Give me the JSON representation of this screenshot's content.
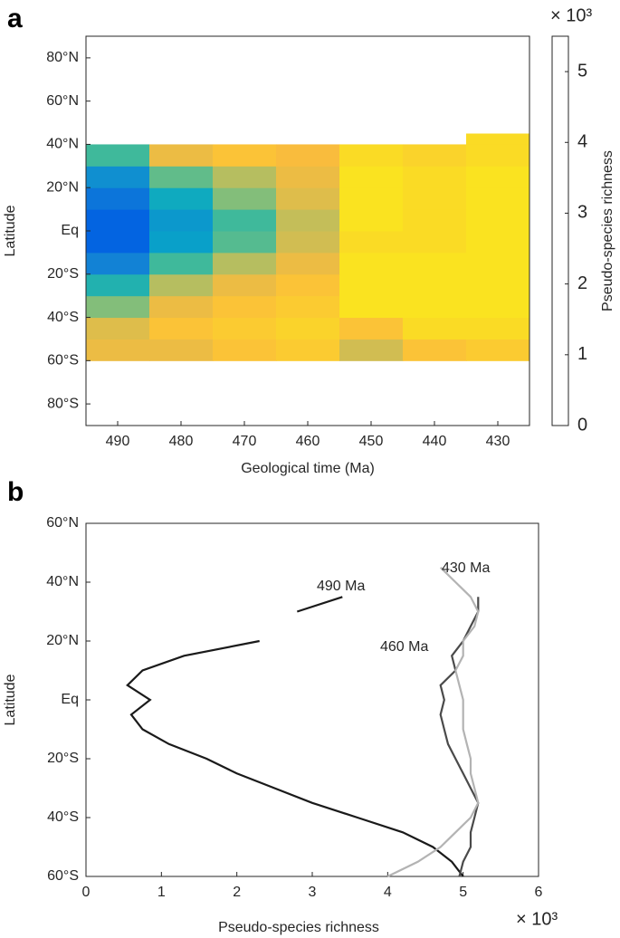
{
  "chart_data": [
    {
      "type": "heatmap",
      "panel": "a",
      "x_label": "Geological time (Ma)",
      "y_label": "Latitude",
      "colorbar_label": "Pseudo-species richness",
      "colorbar_exponent": "× 10³",
      "x_bins": [
        495,
        485,
        475,
        465,
        455,
        445,
        435,
        425
      ],
      "y_bins": [
        -60,
        -50,
        -40,
        -30,
        -20,
        -10,
        0,
        10,
        20,
        30,
        40,
        45
      ],
      "values": [
        [
          4.6,
          4.6,
          4.8,
          4.9,
          4.4,
          4.8,
          4.9
        ],
        [
          4.5,
          4.8,
          4.9,
          5.0,
          4.8,
          5.1,
          5.1
        ],
        [
          3.8,
          4.6,
          4.8,
          4.9,
          5.2,
          5.2,
          5.2
        ],
        [
          2.8,
          4.2,
          4.6,
          4.8,
          5.2,
          5.2,
          5.2
        ],
        [
          1.5,
          3.2,
          4.2,
          4.6,
          5.2,
          5.2,
          5.2
        ],
        [
          0.8,
          2.2,
          3.4,
          4.4,
          5.1,
          5.1,
          5.2
        ],
        [
          0.8,
          2.0,
          3.2,
          4.3,
          5.2,
          5.1,
          5.2
        ],
        [
          1.2,
          2.5,
          3.8,
          4.5,
          5.2,
          5.1,
          5.2
        ],
        [
          1.8,
          3.5,
          4.2,
          4.6,
          5.2,
          5.1,
          5.2
        ],
        [
          3.2,
          4.6,
          4.8,
          4.7,
          5.1,
          5.0,
          5.1
        ],
        [
          null,
          null,
          null,
          null,
          null,
          null,
          5.1
        ]
      ],
      "xlim": [
        495,
        425
      ],
      "xticks": [
        490,
        480,
        470,
        460,
        450,
        440,
        430
      ],
      "ylim": [
        -90,
        90
      ],
      "yticks": [
        {
          "value": -80,
          "label": "80°S"
        },
        {
          "value": -60,
          "label": "60°S"
        },
        {
          "value": -40,
          "label": "40°S"
        },
        {
          "value": -20,
          "label": "20°S"
        },
        {
          "value": 0,
          "label": "Eq"
        },
        {
          "value": 20,
          "label": "20°N"
        },
        {
          "value": 40,
          "label": "40°N"
        },
        {
          "value": 60,
          "label": "60°N"
        },
        {
          "value": 80,
          "label": "80°N"
        }
      ],
      "clim": [
        0,
        5.5
      ],
      "cticks": [
        0,
        1,
        2,
        3,
        4,
        5
      ],
      "colormap": [
        "#352a87",
        "#0363e1",
        "#1485d4",
        "#06a7c6",
        "#38b99e",
        "#92bf73",
        "#fbbc3c",
        "#f9fb0e"
      ]
    },
    {
      "type": "line",
      "panel": "b",
      "x_label": "Pseudo-species richness",
      "x_exponent": "× 10³",
      "y_label": "Latitude",
      "y": [
        -60,
        -55,
        -50,
        -45,
        -40,
        -35,
        -30,
        -25,
        -20,
        -15,
        -10,
        -5,
        0,
        5,
        10,
        15,
        20,
        25,
        30,
        35,
        40,
        45
      ],
      "series": [
        {
          "name": "490 Ma",
          "color": "#1a1a1a",
          "values": [
            5.0,
            4.85,
            4.6,
            4.2,
            3.6,
            3.0,
            2.5,
            2.0,
            1.6,
            1.1,
            0.75,
            0.6,
            0.85,
            0.55,
            0.75,
            1.3,
            2.3,
            null,
            2.8,
            3.4,
            null,
            null
          ]
        },
        {
          "name": "460 Ma",
          "color": "#4a4a4a",
          "values": [
            4.95,
            5.0,
            5.1,
            5.1,
            5.15,
            5.2,
            5.1,
            5.0,
            4.9,
            4.8,
            4.75,
            4.7,
            4.75,
            4.7,
            4.9,
            4.85,
            5.0,
            5.1,
            5.2,
            5.2,
            null,
            null
          ]
        },
        {
          "name": "430 Ma",
          "color": "#b3b3b3",
          "values": [
            4.0,
            4.4,
            4.7,
            4.9,
            5.1,
            5.2,
            5.15,
            5.1,
            5.1,
            5.05,
            5.0,
            5.0,
            5.0,
            4.95,
            4.9,
            5.0,
            5.0,
            5.15,
            5.2,
            5.1,
            4.9,
            4.7
          ]
        }
      ],
      "xlim": [
        0,
        6
      ],
      "xticks": [
        0,
        1,
        2,
        3,
        4,
        5,
        6
      ],
      "ylim": [
        -60,
        60
      ],
      "yticks": [
        {
          "value": -60,
          "label": "60°S"
        },
        {
          "value": -40,
          "label": "40°S"
        },
        {
          "value": -20,
          "label": "20°S"
        },
        {
          "value": 0,
          "label": "Eq"
        },
        {
          "value": 20,
          "label": "20°N"
        },
        {
          "value": 40,
          "label": "40°N"
        },
        {
          "value": 60,
          "label": "60°N"
        }
      ]
    }
  ]
}
